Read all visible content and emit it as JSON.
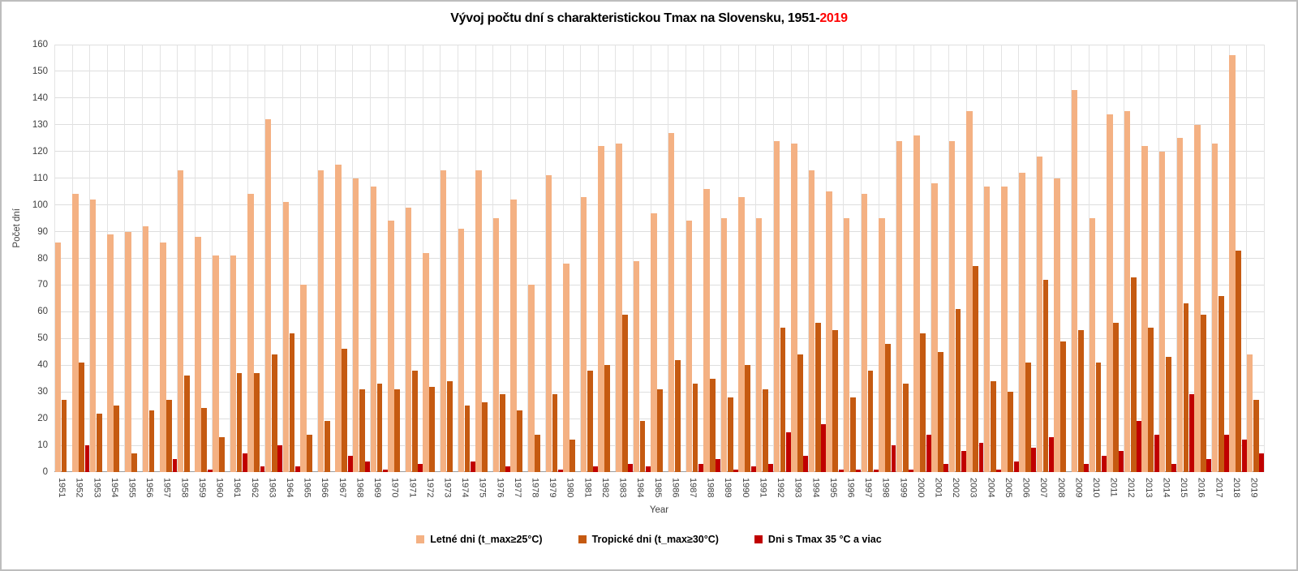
{
  "title": {
    "main": "Vývoj počtu dní s charakteristickou Tmax na Slovensku, 1951-",
    "highlight": "2019",
    "highlight_color": "#ff0000"
  },
  "axes": {
    "x_title": "Year",
    "y_title": "Počet dní",
    "y_ticks": [
      0,
      10,
      20,
      30,
      40,
      50,
      60,
      70,
      80,
      90,
      100,
      110,
      120,
      130,
      140,
      150,
      160
    ]
  },
  "colors": {
    "summer": "#f4b183",
    "tropical": "#c55a11",
    "hot35": "#c00000",
    "gridline": "#dedede",
    "axis_text": "#404040"
  },
  "chart_data": {
    "type": "bar",
    "title": "Vývoj počtu dní s charakteristickou Tmax na Slovensku, 1951-2019",
    "xlabel": "Year",
    "ylabel": "Počet dní",
    "ylim": [
      0,
      160
    ],
    "grid": true,
    "legend_position": "bottom",
    "categories": [
      1951,
      1952,
      1953,
      1954,
      1955,
      1956,
      1957,
      1958,
      1959,
      1960,
      1961,
      1962,
      1963,
      1964,
      1965,
      1966,
      1967,
      1968,
      1969,
      1970,
      1971,
      1972,
      1973,
      1974,
      1975,
      1976,
      1977,
      1978,
      1979,
      1980,
      1981,
      1982,
      1983,
      1984,
      1985,
      1986,
      1987,
      1988,
      1989,
      1990,
      1991,
      1992,
      1993,
      1994,
      1995,
      1996,
      1997,
      1998,
      1999,
      2000,
      2001,
      2002,
      2003,
      2004,
      2005,
      2006,
      2007,
      2008,
      2009,
      2010,
      2011,
      2012,
      2013,
      2014,
      2015,
      2016,
      2017,
      2018,
      2019
    ],
    "series": [
      {
        "key": "summer",
        "name": "Letné dni (t_max≥25°C)",
        "color": "#f4b183",
        "values": [
          86,
          104,
          102,
          89,
          90,
          92,
          86,
          113,
          88,
          81,
          81,
          104,
          132,
          101,
          70,
          113,
          115,
          110,
          107,
          94,
          99,
          82,
          113,
          91,
          113,
          95,
          102,
          70,
          111,
          78,
          103,
          122,
          123,
          79,
          97,
          127,
          94,
          106,
          95,
          103,
          95,
          124,
          123,
          113,
          105,
          95,
          104,
          95,
          124,
          126,
          108,
          124,
          135,
          107,
          107,
          112,
          118,
          110,
          143,
          95,
          134,
          135,
          122,
          120,
          125,
          130,
          123,
          156,
          44
        ]
      },
      {
        "key": "tropical",
        "name": "Tropické dni (t_max≥30°C)",
        "color": "#c55a11",
        "values": [
          27,
          41,
          22,
          25,
          7,
          23,
          27,
          36,
          24,
          13,
          37,
          37,
          44,
          52,
          14,
          19,
          46,
          31,
          33,
          31,
          38,
          32,
          34,
          25,
          26,
          29,
          23,
          14,
          29,
          12,
          38,
          40,
          59,
          19,
          31,
          42,
          33,
          35,
          28,
          40,
          31,
          54,
          44,
          56,
          53,
          28,
          38,
          48,
          33,
          52,
          45,
          61,
          77,
          34,
          30,
          41,
          72,
          49,
          53,
          41,
          56,
          73,
          54,
          43,
          63,
          59,
          66,
          83,
          27
        ]
      },
      {
        "key": "hot35",
        "name": "Dni s Tmax 35 °C a viac",
        "color": "#c00000",
        "values": [
          0,
          10,
          0,
          0,
          0,
          0,
          5,
          0,
          1,
          0,
          7,
          2,
          10,
          2,
          0,
          0,
          6,
          4,
          1,
          0,
          3,
          0,
          0,
          4,
          0,
          2,
          0,
          0,
          1,
          0,
          2,
          0,
          3,
          2,
          0,
          0,
          3,
          5,
          1,
          2,
          3,
          15,
          6,
          18,
          1,
          1,
          1,
          10,
          1,
          14,
          3,
          8,
          11,
          1,
          4,
          9,
          13,
          0,
          3,
          6,
          8,
          19,
          14,
          3,
          29,
          5,
          14,
          12,
          7
        ]
      }
    ]
  }
}
